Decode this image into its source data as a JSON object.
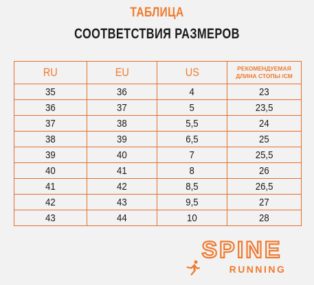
{
  "header": {
    "title_line1": "ТАБЛИЦА",
    "title_line2": "СООТВЕТСТВИЯ РАЗМЕРОВ"
  },
  "table": {
    "columns": [
      "RU",
      "EU",
      "US",
      "РЕКОМЕНДУЕМАЯ ДЛИНА СТОПЫ /СМ"
    ],
    "rows": [
      [
        "35",
        "36",
        "4",
        "23"
      ],
      [
        "36",
        "37",
        "5",
        "23,5"
      ],
      [
        "37",
        "38",
        "5,5",
        "24"
      ],
      [
        "38",
        "39",
        "6,5",
        "25"
      ],
      [
        "39",
        "40",
        "7",
        "25,5"
      ],
      [
        "40",
        "41",
        "8",
        "26"
      ],
      [
        "41",
        "42",
        "8,5",
        "26,5"
      ],
      [
        "42",
        "43",
        "9,5",
        "27"
      ],
      [
        "43",
        "44",
        "10",
        "28"
      ]
    ]
  },
  "logo": {
    "brand": "SPINE",
    "sub": "RUNNING"
  },
  "colors": {
    "accent": "#f07a2e",
    "text": "#1a1a1a",
    "background": "#f2f2f2"
  }
}
